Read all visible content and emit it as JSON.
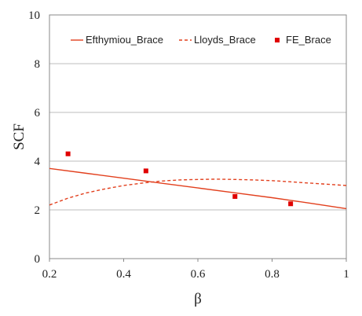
{
  "chart_data": {
    "type": "line",
    "xlabel": "β",
    "ylabel": "SCF",
    "xlim": [
      0.2,
      1.0
    ],
    "ylim": [
      0,
      10
    ],
    "x_ticks": [
      "0.2",
      "0.4",
      "0.6",
      "0.8",
      "1"
    ],
    "y_ticks": [
      "0",
      "2",
      "4",
      "6",
      "8",
      "10"
    ],
    "grid": "horizontal",
    "legend_position": "top",
    "series": [
      {
        "name": "Efthymiou_Brace",
        "style": "solid-line",
        "color": "#e2401e",
        "x": [
          0.2,
          0.3,
          0.4,
          0.5,
          0.6,
          0.7,
          0.8,
          0.9,
          1.0
        ],
        "y": [
          3.7,
          3.5,
          3.3,
          3.1,
          2.9,
          2.7,
          2.5,
          2.28,
          2.05
        ]
      },
      {
        "name": "Lloyds_Brace",
        "style": "dashed-line",
        "color": "#e2401e",
        "x": [
          0.2,
          0.25,
          0.3,
          0.35,
          0.4,
          0.45,
          0.5,
          0.55,
          0.6,
          0.65,
          0.7,
          0.75,
          0.8,
          0.85,
          0.9,
          0.95,
          1.0
        ],
        "y": [
          2.2,
          2.48,
          2.7,
          2.86,
          3.0,
          3.1,
          3.18,
          3.23,
          3.25,
          3.26,
          3.25,
          3.23,
          3.2,
          3.15,
          3.1,
          3.05,
          3.0
        ]
      },
      {
        "name": "FE_Brace",
        "style": "square-marker",
        "color": "#e00000",
        "x": [
          0.25,
          0.46,
          0.7,
          0.85
        ],
        "y": [
          4.3,
          3.6,
          2.55,
          2.25
        ]
      }
    ]
  }
}
